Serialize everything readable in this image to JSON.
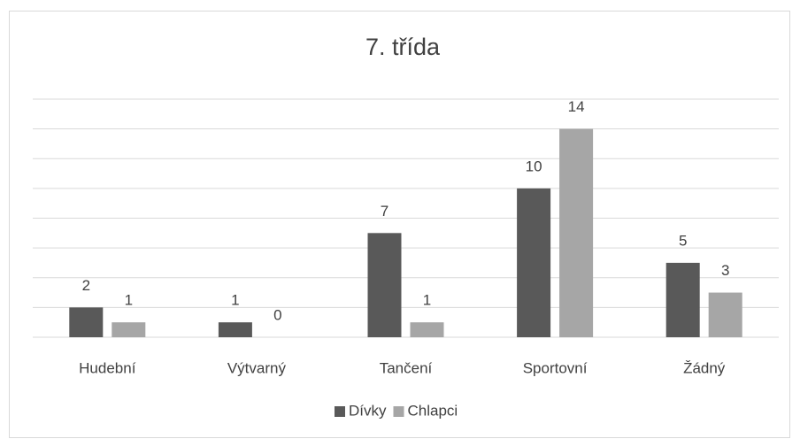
{
  "chart_data": {
    "type": "bar",
    "title": "7. třída",
    "categories": [
      "Hudební",
      "Výtvarný",
      "Tančení",
      "Sportovní",
      "Žádný"
    ],
    "series": [
      {
        "name": "Dívky",
        "color": "#595959",
        "values": [
          2,
          1,
          7,
          10,
          5
        ]
      },
      {
        "name": "Chlapci",
        "color": "#a6a6a6",
        "values": [
          1,
          0,
          1,
          14,
          3
        ]
      }
    ],
    "ylim": [
      0,
      16
    ],
    "yticks": [
      0,
      2,
      4,
      6,
      8,
      10,
      12,
      14,
      16
    ],
    "grid": true,
    "legend": "bottom"
  }
}
